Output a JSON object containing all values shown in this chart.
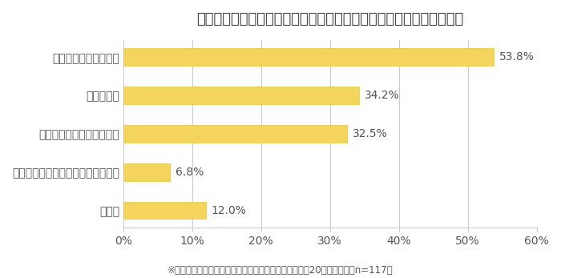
{
  "title": "どのような点で、職場が「ゆるい」と感じますか？　（複数回答可）",
  "categories": [
    "その他",
    "業務時間に占める研修の割合が多い",
    "責任ある仕事を任されない",
    "雑用が多い",
    "上司からの指導がない"
  ],
  "values": [
    12.0,
    6.8,
    32.5,
    34.2,
    53.8
  ],
  "labels": [
    "12.0%",
    "6.8%",
    "32.5%",
    "34.2%",
    "53.8%"
  ],
  "bar_color": "#F5D45E",
  "bar_edge_color": "#E8C040",
  "background_color": "#FFFFFF",
  "title_fontsize": 13,
  "label_fontsize": 10,
  "tick_fontsize": 10,
  "footnote": "※仕事において、職場が「ゆるい」と感じることがある20代が回答　（n=117）",
  "xlim": [
    0,
    60
  ],
  "xticks": [
    0,
    10,
    20,
    30,
    40,
    50,
    60
  ],
  "xtick_labels": [
    "0%",
    "10%",
    "20%",
    "30%",
    "40%",
    "50%",
    "60%"
  ],
  "grid_color": "#CCCCCC",
  "text_color": "#555555",
  "title_color": "#333333"
}
